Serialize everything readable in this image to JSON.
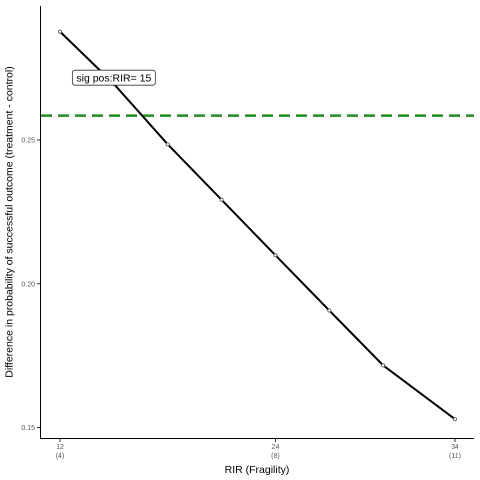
{
  "chart_data": {
    "type": "line",
    "xlabel": "RIR (Fragility)",
    "ylabel": "Difference in probability of successful outcome (treatment - control)",
    "xlim": [
      12,
      34
    ],
    "ylim": [
      0.15,
      0.29
    ],
    "x_ticks": [
      {
        "value": 12,
        "label": "12",
        "sublabel": "(4)"
      },
      {
        "value": 24,
        "label": "24",
        "sublabel": "(8)"
      },
      {
        "value": 34,
        "label": "34",
        "sublabel": "(11)"
      }
    ],
    "y_ticks": [
      {
        "value": 0.15,
        "label": "0.15"
      },
      {
        "value": 0.2,
        "label": "0.20"
      },
      {
        "value": 0.25,
        "label": "0.25"
      }
    ],
    "series": [
      {
        "x": [
          12,
          15,
          18,
          21,
          24,
          27,
          30,
          34
        ],
        "y": [
          0.2877,
          0.2695,
          0.2485,
          0.2292,
          0.2099,
          0.1907,
          0.1716,
          0.1529
        ],
        "color": "#000000"
      }
    ],
    "hline": {
      "y": 0.2585,
      "color": "#228B22",
      "style": "dashed"
    },
    "annotation": {
      "text": "sig pos:RIR= 15",
      "x": 15,
      "y": 0.2715
    },
    "grid": false,
    "legend": "none"
  }
}
